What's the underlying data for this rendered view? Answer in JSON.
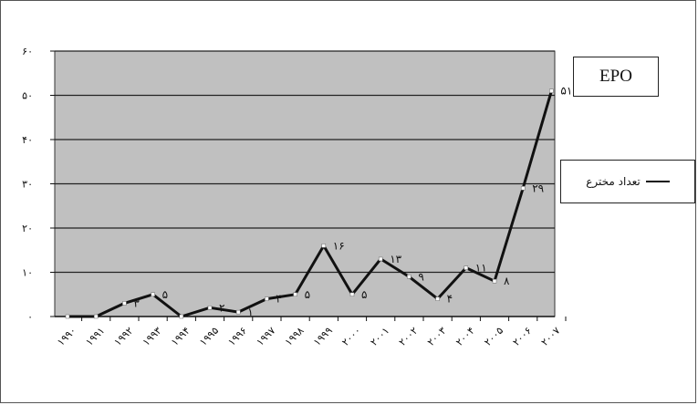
{
  "chart_data": {
    "type": "line",
    "title": "EPO",
    "xlabel": "",
    "ylabel": "",
    "categories": [
      "۱۹۹۰",
      "۱۹۹۱",
      "۱۹۹۲",
      "۱۹۹۳",
      "۱۹۹۴",
      "۱۹۹۵",
      "۱۹۹۶",
      "۱۹۹۷",
      "۱۹۹۸",
      "۱۹۹۹",
      "۲۰۰۰",
      "۲۰۰۱",
      "۲۰۰۲",
      "۲۰۰۳",
      "۲۰۰۴",
      "۲۰۰۵",
      "۲۰۰۶",
      "۲۰۰۷"
    ],
    "series": [
      {
        "name": "تعداد مخترع",
        "values": [
          0,
          0,
          3,
          5,
          0,
          2,
          1,
          4,
          5,
          16,
          5,
          13,
          9,
          4,
          11,
          8,
          29,
          51
        ],
        "labels": [
          "",
          "",
          "۳",
          "۵",
          "",
          "۲",
          "۱",
          "۴",
          "۵",
          "۱۶",
          "۵",
          "۱۳",
          "۹",
          "۴",
          "۱۱",
          "۸",
          "۲۹",
          "۵۱"
        ]
      }
    ],
    "ylim": [
      0,
      60
    ],
    "yticks": [
      0,
      10,
      20,
      30,
      40,
      50,
      60
    ],
    "ytick_labels": [
      "۰",
      "۱۰",
      "۲۰",
      "۳۰",
      "۴۰",
      "۵۰",
      "۶۰"
    ],
    "grid": true,
    "legend_position": "right",
    "colors": {
      "plot_bg": "#c0c0c0",
      "line": "#111111",
      "marker": "#ffffff",
      "grid": "#222222"
    }
  }
}
